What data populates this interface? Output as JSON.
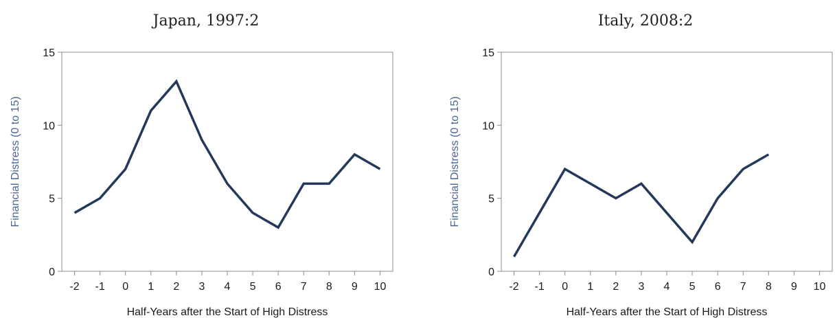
{
  "chart_data": [
    {
      "type": "line",
      "title": "Japan, 1997:2",
      "xlabel": "Half-Years after the Start of High Distress",
      "ylabel": "Financial Distress (0 to 15)",
      "x": [
        -2,
        -1,
        0,
        1,
        2,
        3,
        4,
        5,
        6,
        7,
        8,
        9,
        10
      ],
      "y": [
        4,
        5,
        7,
        11,
        13,
        9,
        6,
        4,
        3,
        6,
        6,
        8,
        7
      ],
      "xticks": [
        "-2",
        "-1",
        "0",
        "1",
        "2",
        "3",
        "4",
        "5",
        "6",
        "7",
        "8",
        "9",
        "10"
      ],
      "yticks": [
        "0",
        "5",
        "10",
        "15"
      ],
      "ylim": [
        0,
        15
      ],
      "grid": false,
      "legend": "none",
      "line_color": "#23395b",
      "axis_color": "#8c8c8c"
    },
    {
      "type": "line",
      "title": "Italy, 2008:2",
      "xlabel": "Half-Years after the Start of High Distress",
      "ylabel": "Financial Distress (0 to 15)",
      "x": [
        -2,
        -1,
        0,
        1,
        2,
        3,
        4,
        5,
        6,
        7,
        8
      ],
      "y": [
        1,
        4,
        7,
        6,
        5,
        6,
        4,
        2,
        5,
        7,
        8
      ],
      "xticks": [
        "-2",
        "-1",
        "0",
        "1",
        "2",
        "3",
        "4",
        "5",
        "6",
        "7",
        "8",
        "9",
        "10"
      ],
      "yticks": [
        "0",
        "5",
        "10",
        "15"
      ],
      "ylim": [
        0,
        15
      ],
      "grid": false,
      "legend": "none",
      "line_color": "#23395b",
      "axis_color": "#8c8c8c"
    }
  ]
}
